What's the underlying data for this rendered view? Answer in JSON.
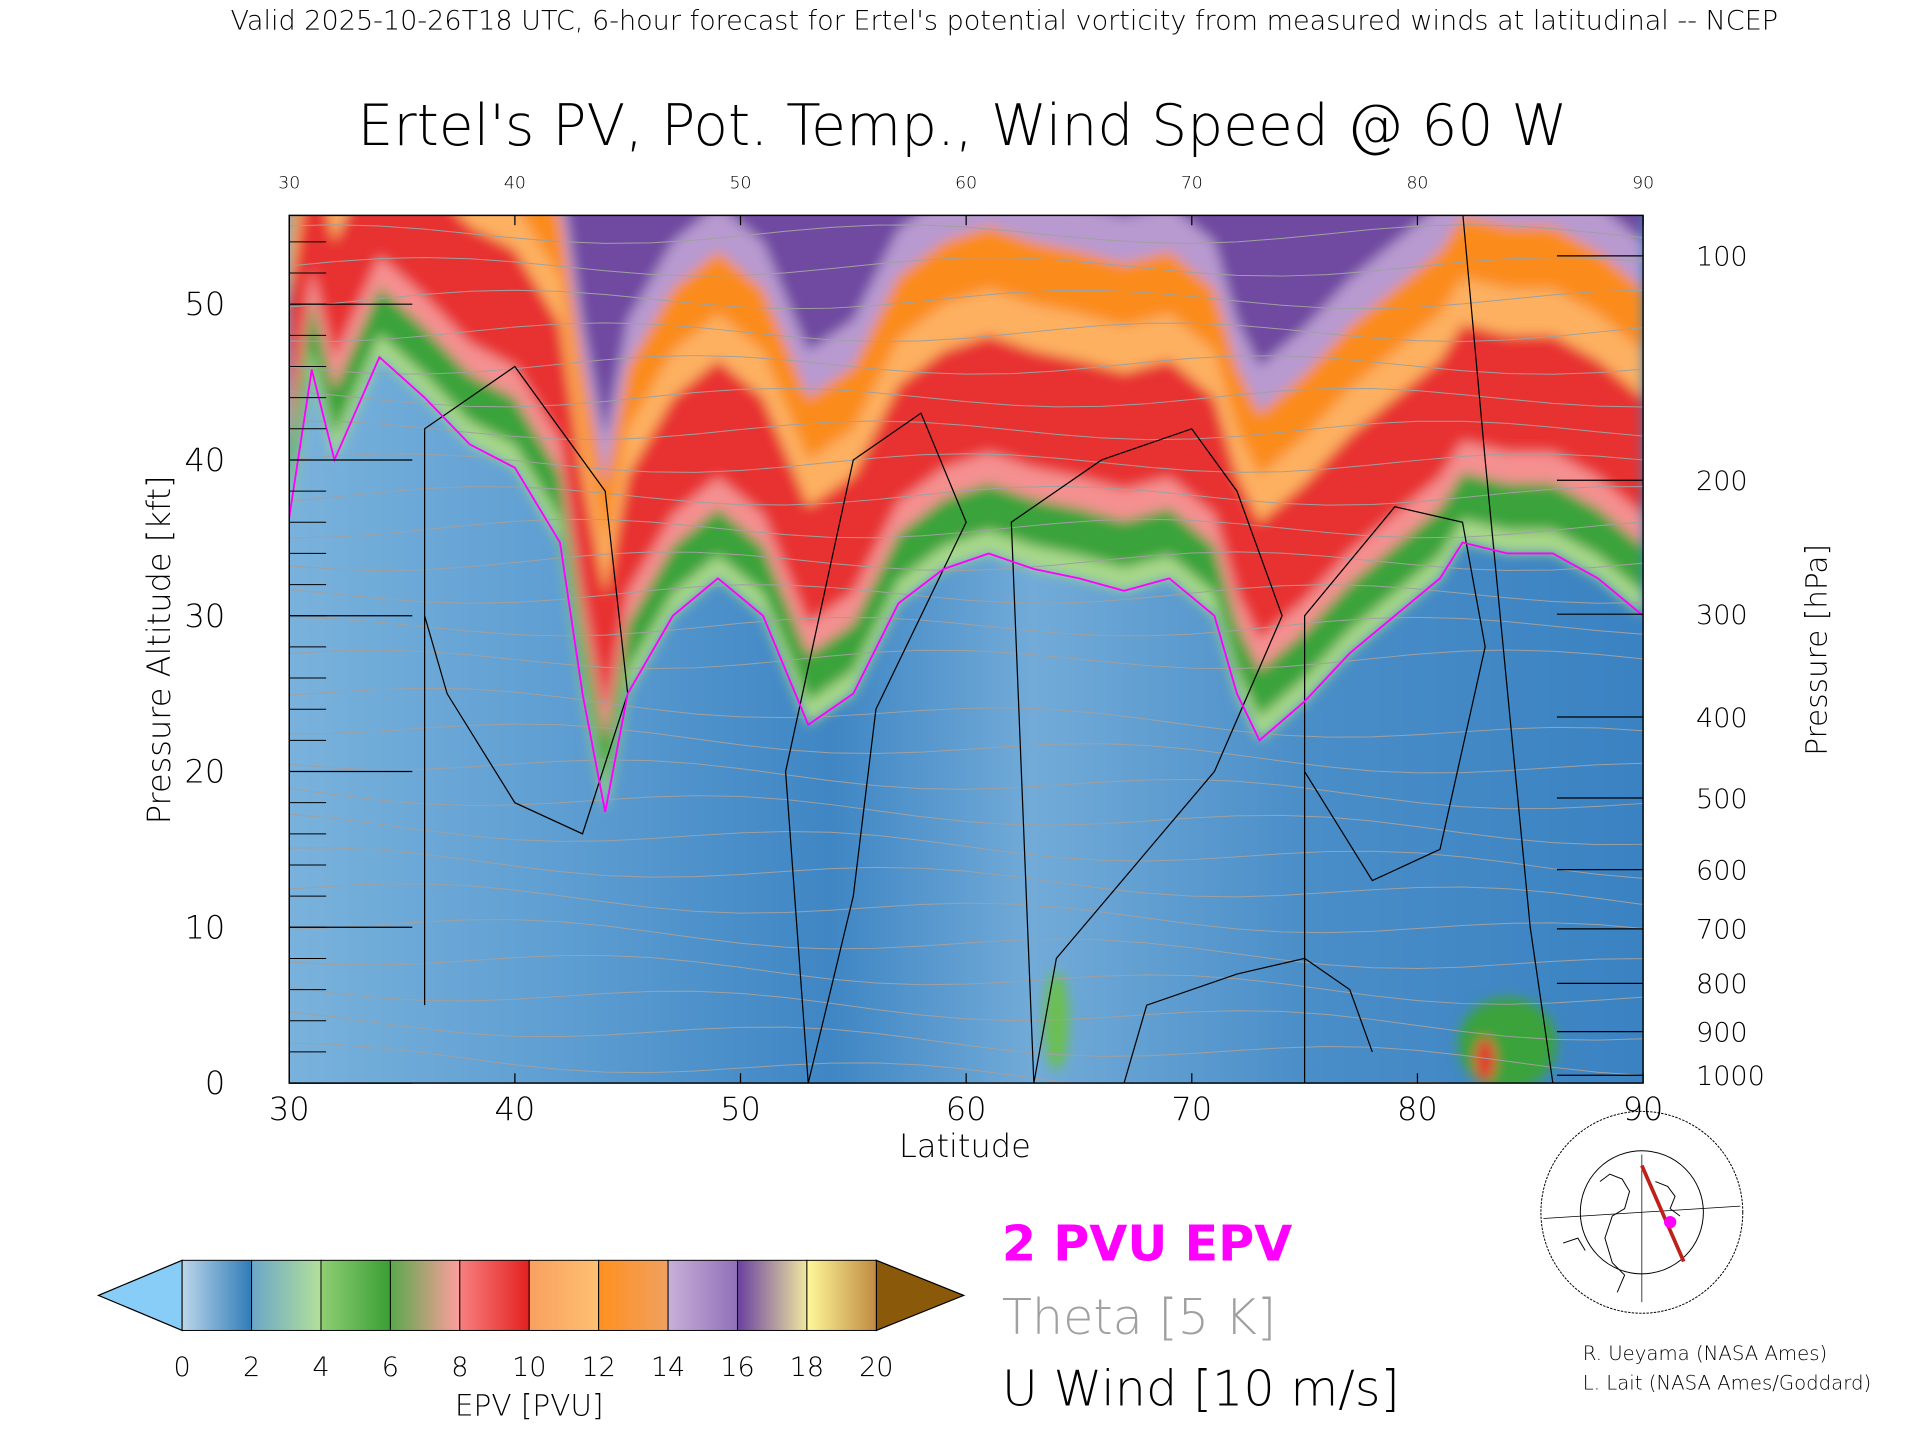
{
  "header": {
    "subtitle": "Valid 2025-10-26T18 UTC, 6-hour forecast for Ertel's potential vorticity from measured winds at latitudinal -- NCEP"
  },
  "chart_data": {
    "type": "heatmap",
    "title": "Ertel's PV, Pot. Temp., Wind Speed @ 60 W",
    "xlabel": "Latitude",
    "ylabel": "Pressure Altitude [kft]",
    "y2label": "Pressure [hPa]",
    "xlim": [
      30,
      90
    ],
    "ylim": [
      0,
      55.7
    ],
    "x_ticks": [
      "30",
      "40",
      "50",
      "60",
      "70",
      "80",
      "90"
    ],
    "x_ticks_top": [
      "30",
      "40",
      "50",
      "60",
      "70",
      "80",
      "90"
    ],
    "y_ticks": [
      "0",
      "10",
      "20",
      "30",
      "40",
      "50"
    ],
    "pressure_ticks": [
      {
        "label": "100",
        "alt": 53.1
      },
      {
        "label": "200",
        "alt": 38.7
      },
      {
        "label": "300",
        "alt": 30.1
      },
      {
        "label": "400",
        "alt": 23.5
      },
      {
        "label": "500",
        "alt": 18.3
      },
      {
        "label": "600",
        "alt": 13.7
      },
      {
        "label": "700",
        "alt": 9.9
      },
      {
        "label": "800",
        "alt": 6.4
      },
      {
        "label": "900",
        "alt": 3.3
      },
      {
        "label": "1000",
        "alt": 0.5
      }
    ],
    "tropopause_2pvu": {
      "lat": [
        30,
        31,
        32,
        34,
        36,
        38,
        40,
        42,
        43,
        44,
        45,
        47,
        49,
        51,
        53,
        55,
        57,
        59,
        61,
        63,
        65,
        67,
        69,
        71,
        72,
        73,
        75,
        77,
        79,
        81,
        82,
        84,
        86,
        88,
        90
      ],
      "alt_kft": [
        36.3,
        45.8,
        40,
        46.6,
        44,
        41,
        39.5,
        34.7,
        25,
        17.4,
        25,
        30,
        32.4,
        30,
        23,
        25,
        30.8,
        33,
        34,
        33,
        32.4,
        31.6,
        32.4,
        30,
        25,
        22,
        24.5,
        27.6,
        30,
        32.4,
        34.7,
        34,
        34,
        32.4,
        30
      ]
    },
    "colorbar": {
      "label": "EPV [PVU]",
      "ticks": [
        "0",
        "2",
        "4",
        "6",
        "8",
        "10",
        "12",
        "14",
        "16",
        "18",
        "20"
      ],
      "segments": [
        [
          "#bcd6ea",
          "#2f7cb8"
        ],
        [
          "#6aa6c8",
          "#b4e09a"
        ],
        [
          "#8fcf74",
          "#3a9e34"
        ],
        [
          "#5aa84c",
          "#ff9e9e"
        ],
        [
          "#f78080",
          "#e42020"
        ],
        [
          "#f8a060",
          "#fec070"
        ],
        [
          "#ff9020",
          "#f0a060"
        ],
        [
          "#c8b0d8",
          "#9070b8"
        ],
        [
          "#6a40a0",
          "#f0e8a0"
        ],
        [
          "#fff89a",
          "#c08a40"
        ]
      ],
      "under_color": "#87cdf8",
      "over_color": "#8a5a0a"
    },
    "bands": [
      {
        "from": 0,
        "to": 1.5,
        "color": "#a8d88a"
      },
      {
        "from": 1.5,
        "to": 4.5,
        "color": "#3aa33a"
      },
      {
        "from": 4.5,
        "to": 6.5,
        "color": "#f59090"
      },
      {
        "from": 6.5,
        "to": 14,
        "color": "#e83030"
      },
      {
        "from": 14,
        "to": 17,
        "color": "#fdb060"
      },
      {
        "from": 17,
        "to": 21,
        "color": "#fb8c1a"
      },
      {
        "from": 21,
        "to": 24,
        "color": "#b89ad0"
      },
      {
        "from": 24,
        "to": 100,
        "color": "#7048a0"
      }
    ]
  },
  "legend": {
    "pv_line": "2 PVU EPV",
    "theta": "Theta [5 K]",
    "uwind": "U Wind [10 m/s]",
    "pv_color": "#ff00ff",
    "theta_color": "#a0a0a0"
  },
  "credits": {
    "line1": "R. Ueyama (NASA Ames)",
    "line2": "L. Lait (NASA Ames/Goddard)"
  }
}
